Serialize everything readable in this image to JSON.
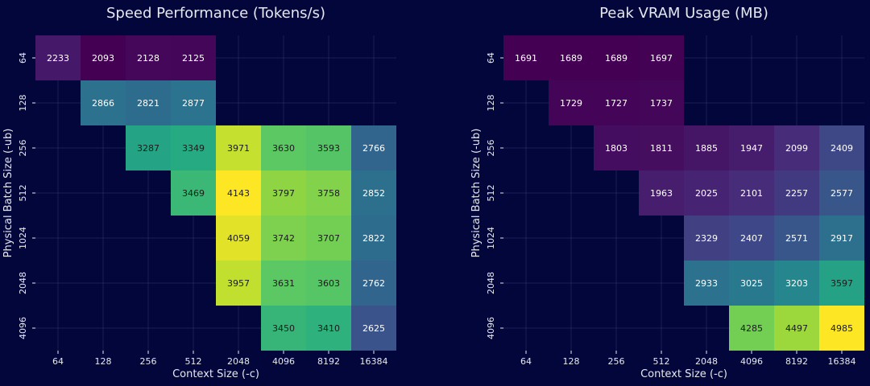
{
  "chart_data": [
    {
      "type": "heatmap",
      "title": "Speed Performance (Tokens/s)",
      "xlabel": "Context Size (-c)",
      "ylabel": "Physical Batch Size (-ub)",
      "x_categories": [
        "64",
        "128",
        "256",
        "512",
        "2048",
        "4096",
        "8192",
        "16384"
      ],
      "y_categories": [
        "64",
        "128",
        "256",
        "512",
        "1024",
        "2048",
        "4096"
      ],
      "colormap": "viridis",
      "vmin": 2093,
      "vmax": 4143,
      "values": [
        [
          2233,
          2093,
          2128,
          2125,
          null,
          null,
          null,
          null
        ],
        [
          null,
          2866,
          2821,
          2877,
          null,
          null,
          null,
          null
        ],
        [
          null,
          null,
          3287,
          3349,
          3971,
          3630,
          3593,
          2766
        ],
        [
          null,
          null,
          null,
          3469,
          4143,
          3797,
          3758,
          2852
        ],
        [
          null,
          null,
          null,
          null,
          4059,
          3742,
          3707,
          2822
        ],
        [
          null,
          null,
          null,
          null,
          3957,
          3631,
          3603,
          2762
        ],
        [
          null,
          null,
          null,
          null,
          null,
          3450,
          3410,
          2625
        ]
      ]
    },
    {
      "type": "heatmap",
      "title": "Peak VRAM Usage (MB)",
      "xlabel": "Context Size (-c)",
      "ylabel": "Physical Batch Size (-ub)",
      "x_categories": [
        "64",
        "128",
        "256",
        "512",
        "2048",
        "4096",
        "8192",
        "16384"
      ],
      "y_categories": [
        "64",
        "128",
        "256",
        "512",
        "1024",
        "2048",
        "4096"
      ],
      "colormap": "viridis",
      "vmin": 1689,
      "vmax": 4985,
      "values": [
        [
          1691,
          1689,
          1689,
          1697,
          null,
          null,
          null,
          null
        ],
        [
          null,
          1729,
          1727,
          1737,
          null,
          null,
          null,
          null
        ],
        [
          null,
          null,
          1803,
          1811,
          1885,
          1947,
          2099,
          2409
        ],
        [
          null,
          null,
          null,
          1963,
          2025,
          2101,
          2257,
          2577
        ],
        [
          null,
          null,
          null,
          null,
          2329,
          2407,
          2571,
          2917
        ],
        [
          null,
          null,
          null,
          null,
          2933,
          3025,
          3203,
          3597
        ],
        [
          null,
          null,
          null,
          null,
          null,
          4285,
          4497,
          4985
        ]
      ]
    }
  ]
}
